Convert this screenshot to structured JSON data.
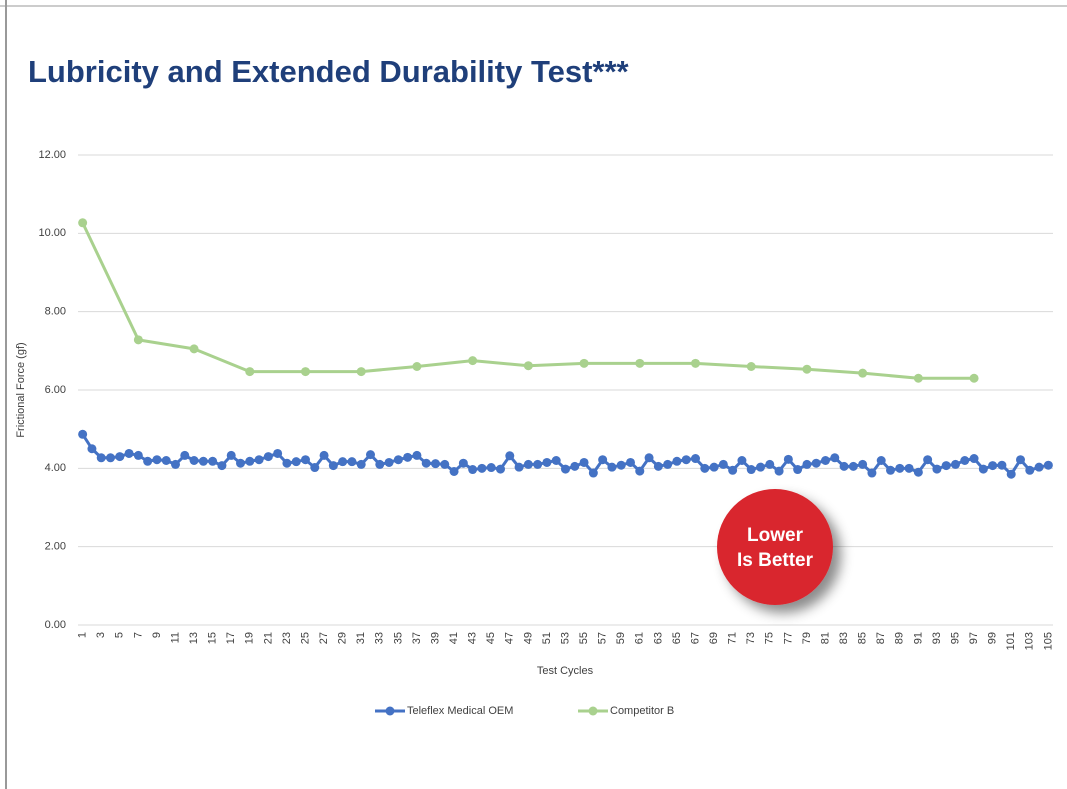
{
  "chart_data": {
    "type": "line",
    "title": "Lubricity and Extended Durability Test***",
    "xlabel": "Test Cycles",
    "ylabel": "Frictional Force (gf)",
    "annotation": [
      "Lower",
      "Is Better"
    ],
    "xlim": [
      0.5,
      105.5
    ],
    "xticks": [
      1,
      3,
      5,
      7,
      9,
      11,
      13,
      15,
      17,
      19,
      21,
      23,
      25,
      27,
      29,
      31,
      33,
      35,
      37,
      39,
      41,
      43,
      45,
      47,
      49,
      51,
      53,
      55,
      57,
      59,
      61,
      63,
      65,
      67,
      69,
      71,
      73,
      75,
      77,
      79,
      81,
      83,
      85,
      87,
      89,
      91,
      93,
      95,
      97,
      99,
      101,
      103,
      105
    ],
    "ylim": [
      0,
      12
    ],
    "yticks": [
      {
        "value": 0,
        "label": "0.00"
      },
      {
        "value": 2,
        "label": "2.00"
      },
      {
        "value": 4,
        "label": "4.00"
      },
      {
        "value": 6,
        "label": "6.00"
      },
      {
        "value": 8,
        "label": "8.00"
      },
      {
        "value": 10,
        "label": "10.00"
      },
      {
        "value": 12,
        "label": "12.00"
      }
    ],
    "grid": true,
    "legend": "bottom",
    "series": [
      {
        "name": "Teleflex Medical OEM",
        "color": "#4472c4",
        "x": [
          1,
          2,
          3,
          4,
          5,
          6,
          7,
          8,
          9,
          10,
          11,
          12,
          13,
          14,
          15,
          16,
          17,
          18,
          19,
          20,
          21,
          22,
          23,
          24,
          25,
          26,
          27,
          28,
          29,
          30,
          31,
          32,
          33,
          34,
          35,
          36,
          37,
          38,
          39,
          40,
          41,
          42,
          43,
          44,
          45,
          46,
          47,
          48,
          49,
          50,
          51,
          52,
          53,
          54,
          55,
          56,
          57,
          58,
          59,
          60,
          61,
          62,
          63,
          64,
          65,
          66,
          67,
          68,
          69,
          70,
          71,
          72,
          73,
          74,
          75,
          76,
          77,
          78,
          79,
          80,
          81,
          82,
          83,
          84,
          85,
          86,
          87,
          88,
          89,
          90,
          91,
          92,
          93,
          94,
          95,
          96,
          97,
          98,
          99,
          100,
          101,
          102,
          103,
          104,
          105
        ],
        "values": [
          4.87,
          4.5,
          4.27,
          4.27,
          4.3,
          4.38,
          4.33,
          4.18,
          4.22,
          4.2,
          4.1,
          4.33,
          4.2,
          4.18,
          4.18,
          4.07,
          4.33,
          4.13,
          4.18,
          4.22,
          4.3,
          4.38,
          4.13,
          4.17,
          4.22,
          4.02,
          4.33,
          4.07,
          4.17,
          4.17,
          4.1,
          4.35,
          4.1,
          4.15,
          4.22,
          4.28,
          4.33,
          4.13,
          4.12,
          4.1,
          3.92,
          4.13,
          3.97,
          4.0,
          4.02,
          3.98,
          4.32,
          4.03,
          4.1,
          4.1,
          4.15,
          4.2,
          3.98,
          4.05,
          4.15,
          3.88,
          4.22,
          4.03,
          4.08,
          4.15,
          3.93,
          4.27,
          4.05,
          4.1,
          4.18,
          4.22,
          4.25,
          4.0,
          4.03,
          4.1,
          3.95,
          4.2,
          3.97,
          4.03,
          4.1,
          3.93,
          4.23,
          3.97,
          4.1,
          4.13,
          4.2,
          4.27,
          4.05,
          4.05,
          4.1,
          3.88,
          4.2,
          3.95,
          4.0,
          4.0,
          3.9,
          4.22,
          3.98,
          4.07,
          4.1,
          4.2,
          4.25,
          3.98,
          4.07,
          4.08,
          3.85,
          4.22,
          3.95,
          4.03,
          4.08
        ]
      },
      {
        "name": "Competitor B",
        "color": "#a9d18e",
        "x": [
          1,
          7,
          13,
          19,
          25,
          31,
          37,
          43,
          49,
          55,
          61,
          67,
          73,
          79,
          85,
          91,
          97
        ],
        "values": [
          10.27,
          7.28,
          7.05,
          6.47,
          6.47,
          6.47,
          6.6,
          6.75,
          6.62,
          6.68,
          6.68,
          6.68,
          6.6,
          6.53,
          6.43,
          6.3,
          6.3
        ]
      }
    ]
  }
}
